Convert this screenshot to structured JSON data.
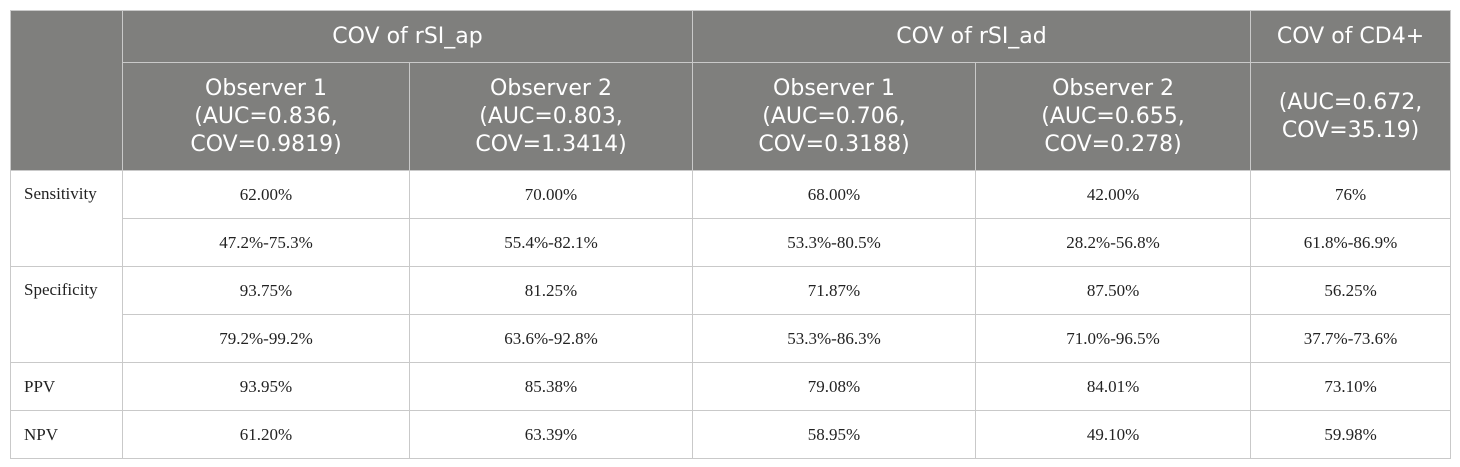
{
  "header": {
    "groups": [
      {
        "label": "COV of rSI_ap",
        "columns": [
          {
            "lines": [
              "Observer 1",
              "(AUC=0.836,",
              "COV=0.9819)"
            ]
          },
          {
            "lines": [
              "Observer 2",
              "(AUC=0.803,",
              "COV=1.3414)"
            ]
          }
        ]
      },
      {
        "label": "COV of rSI_ad",
        "columns": [
          {
            "lines": [
              "Observer 1",
              "(AUC=0.706,",
              "COV=0.3188)"
            ]
          },
          {
            "lines": [
              "Observer 2",
              "(AUC=0.655,",
              "COV=0.278)"
            ]
          }
        ]
      },
      {
        "label": "COV of CD4+",
        "columns": [
          {
            "lines": [
              "(AUC=0.672,",
              "COV=35.19)"
            ]
          }
        ]
      }
    ]
  },
  "table": {
    "rows": [
      {
        "label": "Sensitivity",
        "lines": [
          [
            "62.00%",
            "70.00%",
            "68.00%",
            "42.00%",
            "76%"
          ],
          [
            "47.2%-75.3%",
            "55.4%-82.1%",
            "53.3%-80.5%",
            "28.2%-56.8%",
            "61.8%-86.9%"
          ]
        ]
      },
      {
        "label": "Specificity",
        "lines": [
          [
            "93.75%",
            "81.25%",
            "71.87%",
            "87.50%",
            "56.25%"
          ],
          [
            "79.2%-99.2%",
            "63.6%-92.8%",
            "53.3%-86.3%",
            "71.0%-96.5%",
            "37.7%-73.6%"
          ]
        ]
      },
      {
        "label": "PPV",
        "lines": [
          [
            "93.95%",
            "85.38%",
            "79.08%",
            "84.01%",
            "73.10%"
          ]
        ]
      },
      {
        "label": "NPV",
        "lines": [
          [
            "61.20%",
            "63.39%",
            "58.95%",
            "49.10%",
            "59.98%"
          ]
        ]
      }
    ]
  }
}
